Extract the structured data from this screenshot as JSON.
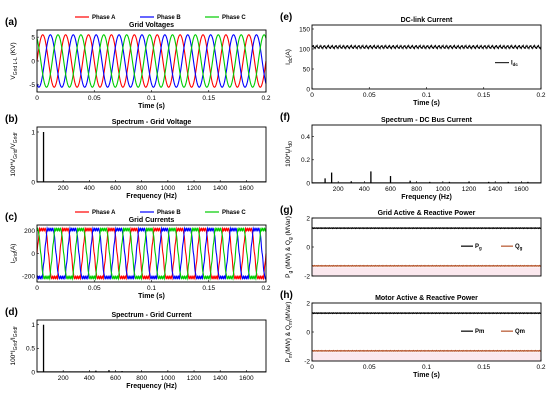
{
  "colors": {
    "phase_a": "#ff0000",
    "phase_b": "#0000ff",
    "phase_c": "#00cc00",
    "p": "#000000",
    "q": "#b5532a",
    "axis": "#000000"
  },
  "chart_data": [
    {
      "id": "a",
      "type": "line",
      "panel_label": "(a)",
      "title": "Grid Voltages",
      "xlabel": "Time (s)",
      "ylabel": "V",
      "ylabel_sub": "Grid L-L",
      "ylabel_unit": " (KV)",
      "xlim": [
        0,
        0.2
      ],
      "ylim": [
        -6.5,
        6.5
      ],
      "xticks": [
        0,
        0.05,
        0.1,
        0.15,
        0.2
      ],
      "xticklabels": [
        "0",
        "0.05",
        "0.1",
        "0.15",
        "0.2"
      ],
      "yticks": [
        -5,
        0,
        5
      ],
      "yticklabels": [
        "-5",
        "0",
        "5"
      ],
      "legend_position": "top",
      "series": [
        {
          "name": "Phase A",
          "amplitude": 5.5,
          "frequency_hz": 50,
          "phase_deg": 0
        },
        {
          "name": "Phase B",
          "amplitude": 5.5,
          "frequency_hz": 50,
          "phase_deg": -120
        },
        {
          "name": "Phase C",
          "amplitude": 5.5,
          "frequency_hz": 50,
          "phase_deg": 120
        }
      ]
    },
    {
      "id": "b",
      "type": "bar",
      "panel_label": "(b)",
      "title": "Spectrum - Grid Voltage",
      "xlabel": "Frequency (Hz)",
      "ylabel": "100*V",
      "ylabel_sub1": "Grid",
      "ylabel_mid": "/V",
      "ylabel_sub2": "Grid",
      "ylabel_sub3": "f",
      "xlim": [
        0,
        1750
      ],
      "ylim": [
        0,
        1.1
      ],
      "xticks": [
        200,
        400,
        600,
        800,
        1000,
        1200,
        1400,
        1600
      ],
      "xticklabels": [
        "200",
        "400",
        "600",
        "800",
        "1000",
        "1200",
        "1400",
        "1600"
      ],
      "yticks": [
        0,
        1
      ],
      "yticklabels": [
        "0",
        "1"
      ],
      "x": [
        50
      ],
      "values": [
        1
      ]
    },
    {
      "id": "c",
      "type": "line",
      "panel_label": "(c)",
      "title": "Grid Currents",
      "xlabel": "Time (s)",
      "ylabel": "I",
      "ylabel_sub": "Grid",
      "ylabel_unit": "(A)",
      "xlim": [
        0,
        0.2
      ],
      "ylim": [
        -250,
        250
      ],
      "xticks": [
        0,
        0.05,
        0.1,
        0.15,
        0.2
      ],
      "xticklabels": [
        "0",
        "0.05",
        "0.1",
        "0.15",
        "0.2"
      ],
      "yticks": [
        -200,
        0,
        200
      ],
      "yticklabels": [
        "-200",
        "0",
        "200"
      ],
      "legend_position": "top",
      "series": [
        {
          "name": "Phase A",
          "amplitude": 210,
          "frequency_hz": 50,
          "phase_deg": 0,
          "shape": "stepped"
        },
        {
          "name": "Phase B",
          "amplitude": 210,
          "frequency_hz": 50,
          "phase_deg": -120,
          "shape": "stepped"
        },
        {
          "name": "Phase C",
          "amplitude": 210,
          "frequency_hz": 50,
          "phase_deg": 120,
          "shape": "stepped"
        }
      ]
    },
    {
      "id": "d",
      "type": "bar",
      "panel_label": "(d)",
      "title": "Spectrum - Grid Current",
      "xlabel": "Frequency (Hz)",
      "ylabel": "100*I",
      "ylabel_sub1": "Grid",
      "ylabel_mid": "/I",
      "ylabel_sub2": "Grid",
      "ylabel_sub3": "f",
      "xlim": [
        0,
        1750
      ],
      "ylim": [
        0,
        1.1
      ],
      "xticks": [
        200,
        400,
        600,
        800,
        1000,
        1200,
        1400,
        1600
      ],
      "xticklabels": [
        "200",
        "400",
        "600",
        "800",
        "1000",
        "1200",
        "1400",
        "1600"
      ],
      "yticks": [
        0,
        0.5,
        1
      ],
      "yticklabels": [
        "0",
        "0.5",
        "1"
      ],
      "x": [
        50,
        250,
        350,
        450,
        550,
        650
      ],
      "values": [
        1,
        0.01,
        0.01,
        0.03,
        0.04,
        0.02
      ]
    },
    {
      "id": "e",
      "type": "line",
      "panel_label": "(e)",
      "title": "DC-link Current",
      "xlabel": "Time (s)",
      "ylabel": "I",
      "ylabel_sub": "dc",
      "ylabel_unit": "(A)",
      "xlim": [
        0,
        0.2
      ],
      "ylim": [
        0,
        160
      ],
      "xticks": [
        0,
        0.05,
        0.1,
        0.15,
        0.2
      ],
      "xticklabels": [
        "0",
        "0.05",
        "0.1",
        "0.15",
        "0.2"
      ],
      "yticks": [
        0,
        50,
        100,
        150
      ],
      "yticklabels": [
        "0",
        "50",
        "100",
        "150"
      ],
      "legend_position": "center-right",
      "series": [
        {
          "name": "I",
          "name_sub": "dc",
          "mean": 105,
          "ripple": 5
        }
      ]
    },
    {
      "id": "f",
      "type": "bar",
      "panel_label": "(f)",
      "title": "Spectrum - DC Bus Current",
      "xlabel": "Frequency (Hz)",
      "ylabel": "100*I",
      "ylabel_sub1": "f",
      "ylabel_mid": "/I",
      "ylabel_sub2": "d0",
      "xlim": [
        0,
        1750
      ],
      "ylim": [
        0,
        0.5
      ],
      "xticks": [
        200,
        400,
        600,
        800,
        1000,
        1200,
        1400,
        1600
      ],
      "xticklabels": [
        "200",
        "400",
        "600",
        "800",
        "1000",
        "1200",
        "1400",
        "1600"
      ],
      "yticks": [
        0,
        0.2,
        0.4
      ],
      "yticklabels": [
        "0",
        "0.2",
        "0.4"
      ],
      "x": [
        100,
        150,
        300,
        450,
        600,
        750,
        900,
        1050,
        1200,
        1350,
        1500,
        1650
      ],
      "values": [
        0.04,
        0.09,
        0.015,
        0.1,
        0.06,
        0.02,
        0.01,
        0.01,
        0.01,
        0.01,
        0.01,
        0.01
      ]
    },
    {
      "id": "g",
      "type": "line",
      "panel_label": "(g)",
      "title": "Grid Active & Reactive Power",
      "xlabel": "",
      "ylabel": "P",
      "ylabel_sub": "g",
      "ylabel_mid": " (MW) & Q",
      "ylabel_sub2": "g",
      "ylabel_unit": " (MVar)",
      "xlim": [
        0,
        0.2
      ],
      "ylim": [
        -2,
        2
      ],
      "xticks": [],
      "xticklabels": [],
      "yticks": [
        -2,
        0,
        2
      ],
      "yticklabels": [
        "-2",
        "0",
        "2"
      ],
      "legend_position": "center-right",
      "series": [
        {
          "name": "P",
          "name_sub": "g",
          "value": 1.3
        },
        {
          "name": "Q",
          "name_sub": "g",
          "value": -1.3
        }
      ]
    },
    {
      "id": "h",
      "type": "line",
      "panel_label": "(h)",
      "title": "Motor Active & Reactive Power",
      "xlabel": "Time (s)",
      "ylabel": "P",
      "ylabel_sub": "m",
      "ylabel_mid": "(MW) & Q",
      "ylabel_sub2": "m",
      "ylabel_unit": "(MVar)",
      "xlim": [
        0,
        0.2
      ],
      "ylim": [
        -2,
        2
      ],
      "xticks": [
        0,
        0.05,
        0.1,
        0.15,
        0.2
      ],
      "xticklabels": [
        "0",
        "0.05",
        "0.1",
        "0.15",
        "0.2"
      ],
      "yticks": [
        -2,
        0,
        2
      ],
      "yticklabels": [
        "-2",
        "0",
        "2"
      ],
      "legend_position": "center-right",
      "series": [
        {
          "name": "Pm",
          "value": 1.3
        },
        {
          "name": "Qm",
          "value": -1.3
        }
      ]
    }
  ]
}
